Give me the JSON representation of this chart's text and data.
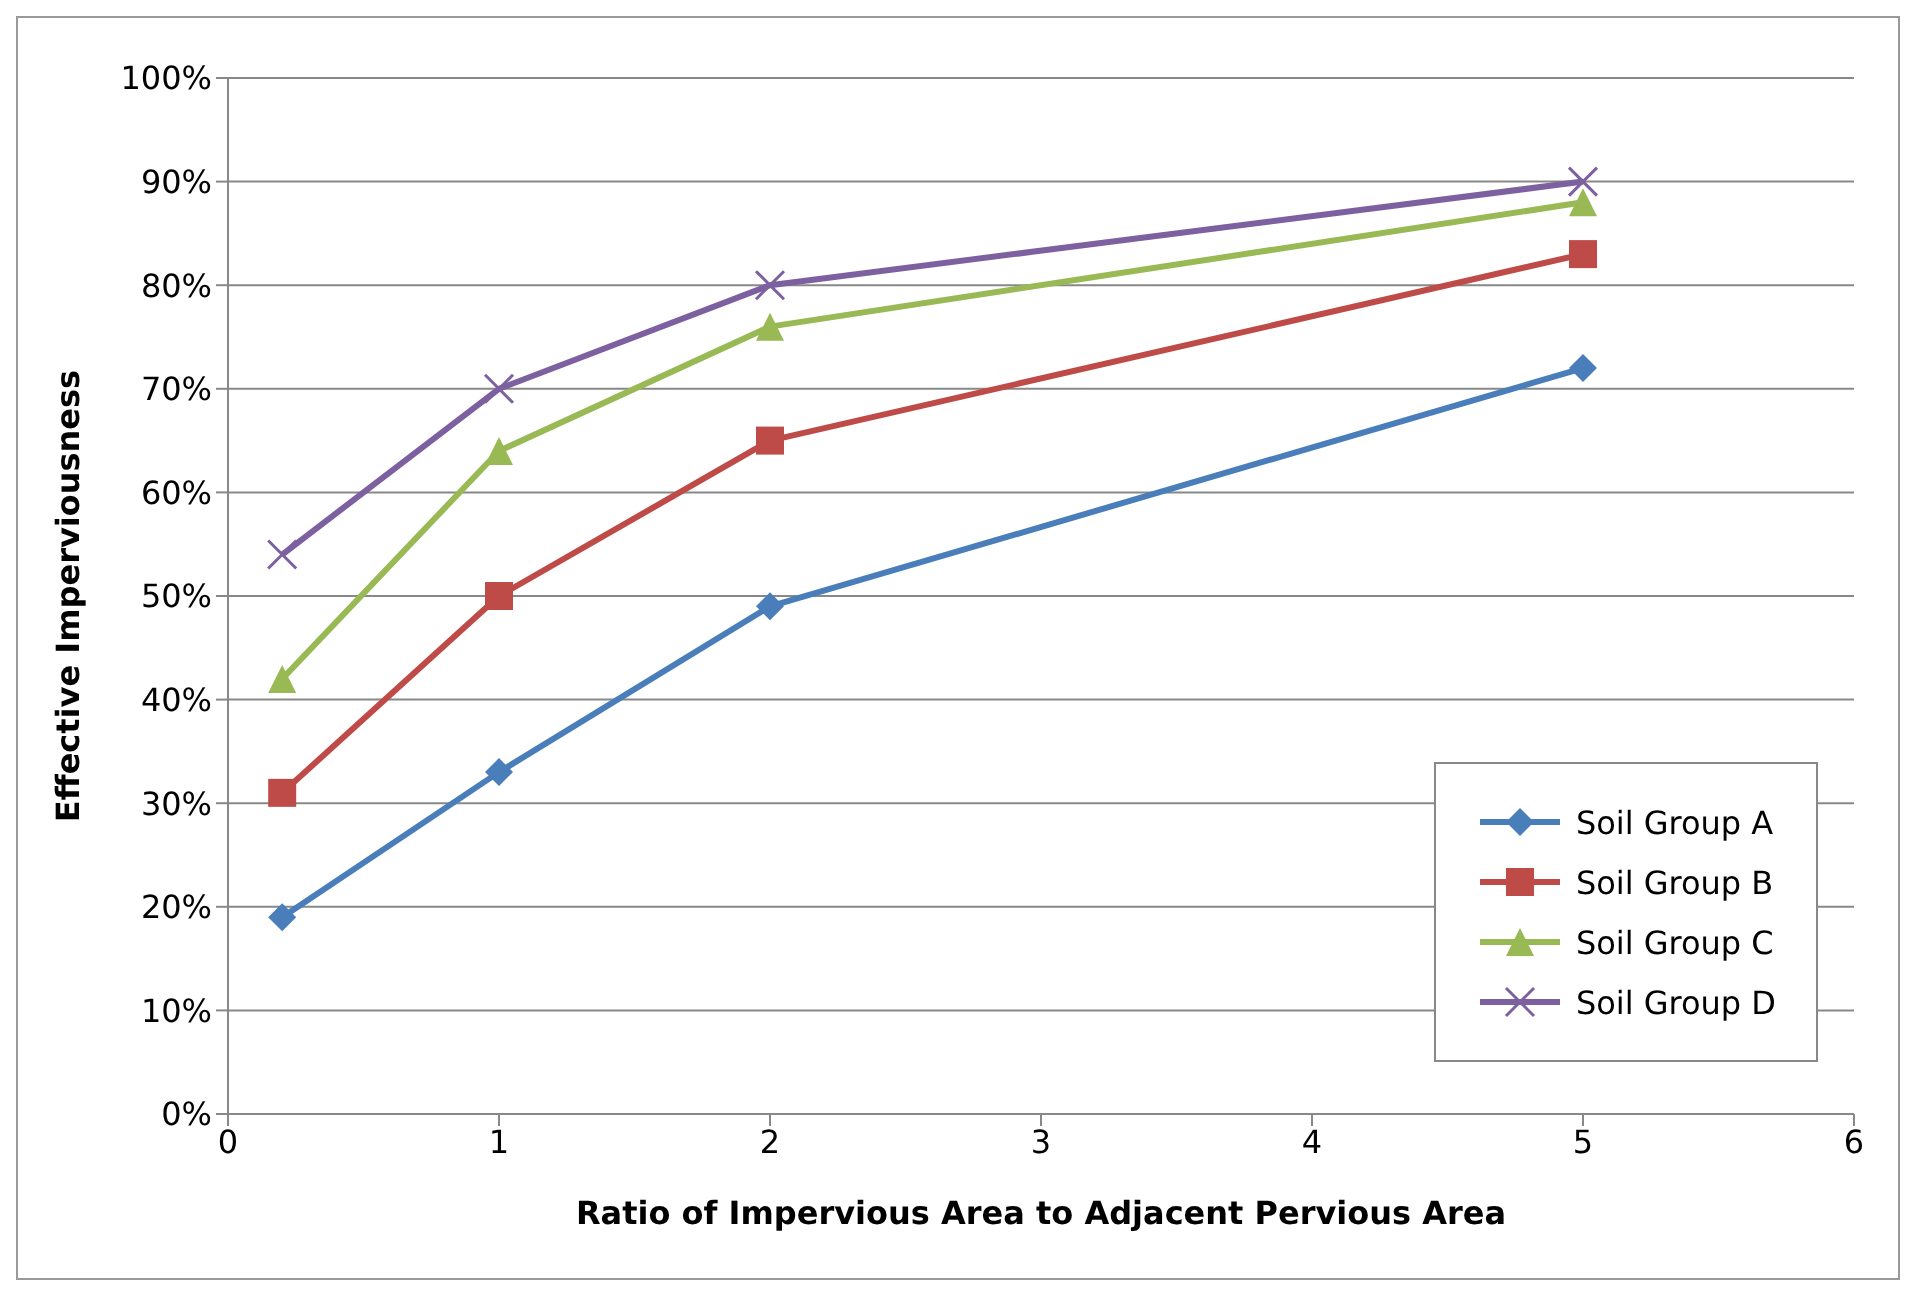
{
  "chart_data": {
    "type": "line",
    "xlabel": "Ratio of Impervious Area to Adjacent Pervious Area",
    "ylabel": "Effective Imperviousness",
    "x": [
      0.2,
      1,
      2,
      5
    ],
    "series": [
      {
        "name": "Soil Group A",
        "color": "#4a7ebb",
        "marker": "diamond",
        "values": [
          19,
          33,
          49,
          72
        ]
      },
      {
        "name": "Soil Group B",
        "color": "#be4b48",
        "marker": "square",
        "values": [
          31,
          50,
          65,
          83
        ]
      },
      {
        "name": "Soil Group C",
        "color": "#98b954",
        "marker": "triangle",
        "values": [
          42,
          64,
          76,
          88
        ]
      },
      {
        "name": "Soil Group D",
        "color": "#7d60a0",
        "marker": "cross",
        "values": [
          54,
          70,
          80,
          90
        ]
      }
    ],
    "xlim": [
      0,
      6
    ],
    "xticks": [
      0,
      1,
      2,
      3,
      4,
      5,
      6
    ],
    "ylim": [
      0,
      100
    ],
    "yticks": [
      {
        "value": 0,
        "label": "0%"
      },
      {
        "value": 10,
        "label": "10%"
      },
      {
        "value": 20,
        "label": "20%"
      },
      {
        "value": 30,
        "label": "30%"
      },
      {
        "value": 40,
        "label": "40%"
      },
      {
        "value": 50,
        "label": "50%"
      },
      {
        "value": 60,
        "label": "60%"
      },
      {
        "value": 70,
        "label": "70%"
      },
      {
        "value": 80,
        "label": "80%"
      },
      {
        "value": 90,
        "label": "90%"
      },
      {
        "value": 100,
        "label": "100%"
      }
    ],
    "grid": "y",
    "legend": "bottom right",
    "line_style": "solid"
  }
}
